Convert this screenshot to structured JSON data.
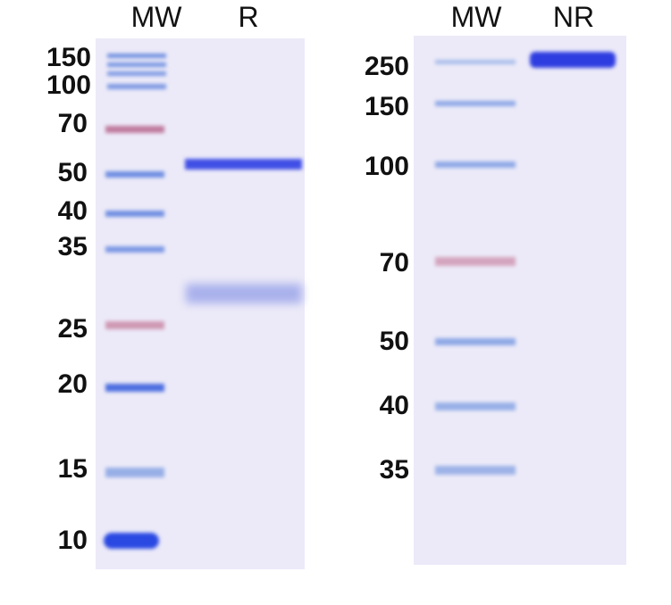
{
  "gels": [
    {
      "lanes": [
        "MW",
        "R"
      ],
      "markers": [
        "150",
        "100",
        "70",
        "50",
        "40",
        "35",
        "25",
        "20",
        "15",
        "10"
      ]
    },
    {
      "lanes": [
        "MW",
        "NR"
      ],
      "markers": [
        "250",
        "150",
        "100",
        "70",
        "50",
        "40",
        "35"
      ]
    }
  ]
}
